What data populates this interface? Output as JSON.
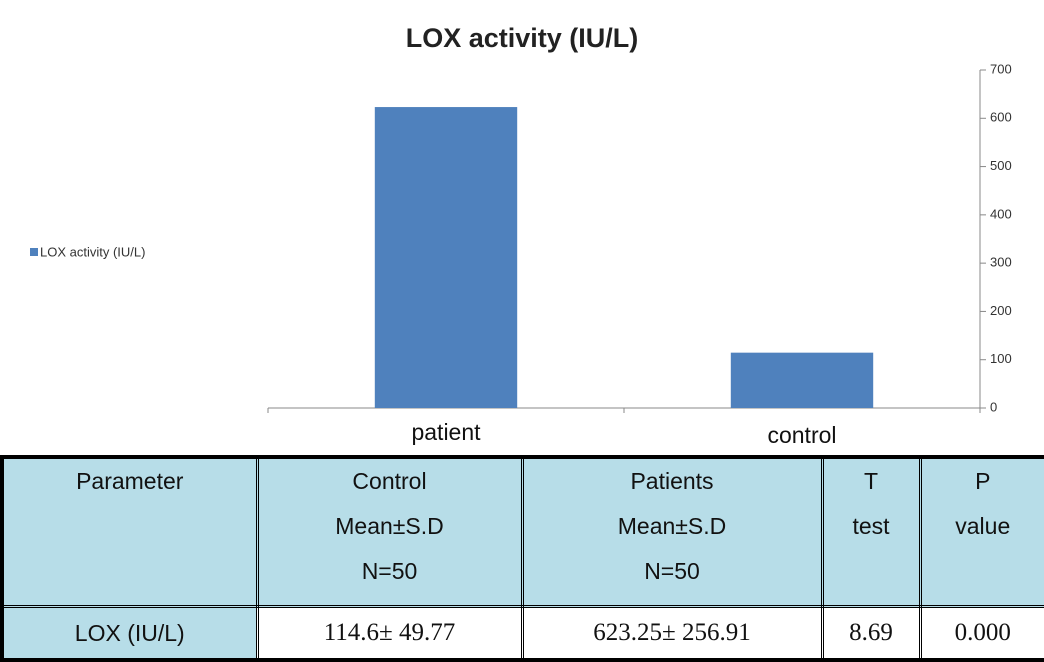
{
  "chart_data": {
    "type": "bar",
    "title": "LOX activity (IU/L)",
    "categories": [
      "patient",
      "control"
    ],
    "series": [
      {
        "name": "LOX activity (IU/L)",
        "color": "#4f81bd",
        "values": [
          623.25,
          114.6
        ]
      }
    ],
    "ylim": [
      0,
      700
    ],
    "yticks": [
      0,
      100,
      200,
      300,
      400,
      500,
      600,
      700
    ],
    "legend": "left"
  },
  "table": {
    "header": [
      [
        "Parameter"
      ],
      [
        "Control",
        "Mean±S.D",
        "N=50"
      ],
      [
        "Patients",
        "Mean±S.D",
        "N=50"
      ],
      [
        "T",
        "test"
      ],
      [
        "P",
        "value"
      ]
    ],
    "rows": [
      [
        "LOX (IU/L)",
        "114.6± 49.77",
        "623.25± 256.91",
        "8.69",
        "0.000"
      ]
    ]
  }
}
